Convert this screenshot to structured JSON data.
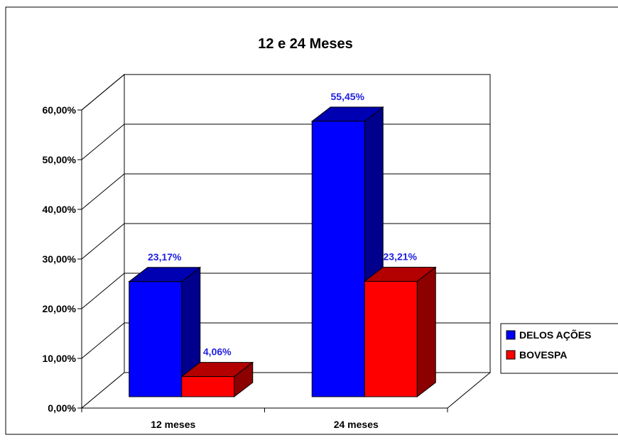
{
  "chart_data": {
    "type": "bar",
    "title": "12 e 24 Meses",
    "categories": [
      "12 meses",
      "24 meses"
    ],
    "series": [
      {
        "name": "DELOS AÇÕES",
        "values": [
          23.17,
          55.45
        ],
        "labels": [
          "23,17%",
          "55,45%"
        ],
        "color": "#0000FF"
      },
      {
        "name": "BOVESPA",
        "values": [
          4.06,
          23.21
        ],
        "labels": [
          "4,06%",
          "23,21%"
        ],
        "color": "#FF0000"
      }
    ],
    "yticks": [
      "0,00%",
      "10,00%",
      "20,00%",
      "30,00%",
      "40,00%",
      "50,00%",
      "60,00%"
    ],
    "ylim": [
      0,
      60
    ],
    "grid": true,
    "legend_position": "right",
    "three_d": true,
    "data_label_color": "#1F1FE0"
  }
}
